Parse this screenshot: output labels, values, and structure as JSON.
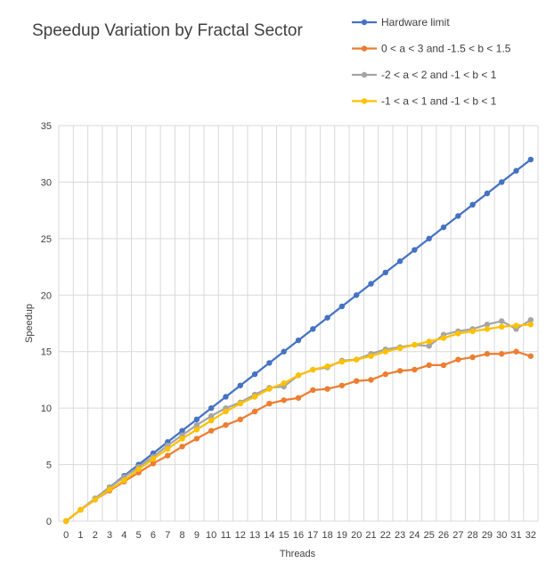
{
  "chart_data": {
    "type": "line",
    "title": "Speedup Variation by Fractal Sector",
    "xlabel": "Threads",
    "ylabel": "Speedup",
    "x": [
      0,
      1,
      2,
      3,
      4,
      5,
      6,
      7,
      8,
      9,
      10,
      11,
      12,
      13,
      14,
      15,
      16,
      17,
      18,
      19,
      20,
      21,
      22,
      23,
      24,
      25,
      26,
      27,
      28,
      29,
      30,
      31,
      32
    ],
    "ylim": [
      0,
      35
    ],
    "yticks": [
      0,
      5,
      10,
      15,
      20,
      25,
      30,
      35
    ],
    "grid": true,
    "legend_position": "top-right",
    "series": [
      {
        "name": "Hardware limit",
        "color": "#4472c4",
        "values": [
          0,
          1,
          2,
          3,
          4,
          5,
          6,
          7,
          8,
          9,
          10,
          11,
          12,
          13,
          14,
          15,
          16,
          17,
          18,
          19,
          20,
          21,
          22,
          23,
          24,
          25,
          26,
          27,
          28,
          29,
          30,
          31,
          32
        ]
      },
      {
        "name": "0 < a < 3 and -1.5 < b < 1.5",
        "color": "#ed7d31",
        "values": [
          0,
          1,
          1.9,
          2.7,
          3.5,
          4.3,
          5.1,
          5.8,
          6.6,
          7.3,
          8.0,
          8.5,
          9.0,
          9.7,
          10.4,
          10.7,
          10.9,
          11.6,
          11.7,
          12.0,
          12.4,
          12.5,
          13.0,
          13.3,
          13.4,
          13.8,
          13.8,
          14.3,
          14.5,
          14.8,
          14.8,
          15.0,
          14.6
        ]
      },
      {
        "name": "-2 < a < 2 and -1 < b < 1",
        "color": "#a5a5a5",
        "values": [
          0,
          1,
          2,
          3,
          3.9,
          4.8,
          5.7,
          6.7,
          7.6,
          8.5,
          9.3,
          10.0,
          10.5,
          11.2,
          11.8,
          11.9,
          12.9,
          13.4,
          13.6,
          14.2,
          14.3,
          14.8,
          15.2,
          15.4,
          15.6,
          15.5,
          16.5,
          16.8,
          17.0,
          17.4,
          17.7,
          17.0,
          17.8
        ]
      },
      {
        "name": "-1 < a < 1 and -1 < b < 1",
        "color": "#ffc000",
        "values": [
          0,
          1,
          1.9,
          2.8,
          3.6,
          4.6,
          5.5,
          6.4,
          7.3,
          8.1,
          8.9,
          9.7,
          10.4,
          11.0,
          11.7,
          12.2,
          12.9,
          13.4,
          13.7,
          14.1,
          14.3,
          14.6,
          15.0,
          15.3,
          15.6,
          15.9,
          16.2,
          16.6,
          16.8,
          17.0,
          17.2,
          17.3,
          17.4
        ]
      }
    ]
  }
}
